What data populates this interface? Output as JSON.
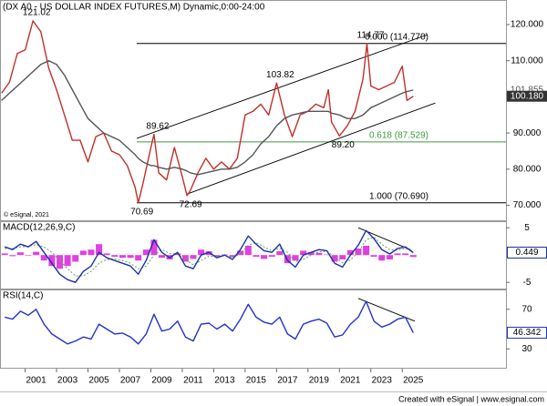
{
  "chart_data": [
    {
      "type": "line",
      "title": "(DX A0 - US DOLLAR INDEX FUTURES,M) Dynamic,0:00-24:00",
      "note": "© eSignal, 2021",
      "xlim": [
        1999.4,
        2031.6
      ],
      "ylim": [
        65.6,
        126.8
      ],
      "yticks": [
        {
          "value": 70,
          "label": "70.000"
        },
        {
          "value": 80,
          "label": "80.000"
        },
        {
          "value": 90,
          "label": "90.000"
        },
        {
          "value": 110,
          "label": "110.000"
        },
        {
          "value": 120,
          "label": "120.000"
        }
      ],
      "x": [
        1999.5,
        2000,
        2000.5,
        2001,
        2001.5,
        2002,
        2002.5,
        2003,
        2003.5,
        2004,
        2004.5,
        2005,
        2005.5,
        2006,
        2006.5,
        2007,
        2007.5,
        2008,
        2008.2,
        2008.5,
        2009,
        2009.2,
        2009.5,
        2010,
        2010.5,
        2011,
        2011.3,
        2011.5,
        2012,
        2012.5,
        2013,
        2013.5,
        2014,
        2014.5,
        2015,
        2015.5,
        2016,
        2016.5,
        2017,
        2017.5,
        2018,
        2018.5,
        2019,
        2019.5,
        2020,
        2020.3,
        2020.5,
        2021,
        2021.5,
        2022,
        2022.5,
        2022.75,
        2023,
        2023.5,
        2024,
        2024.5,
        2025,
        2025.3,
        2025.7
      ],
      "series": [
        {
          "color": "#c0302a",
          "value_box": "dark",
          "values": [
            101,
            104,
            112,
            113,
            121.02,
            118,
            108,
            102,
            95,
            88,
            88,
            82,
            89,
            90,
            85,
            84,
            81,
            75,
            70.69,
            76,
            86,
            89.62,
            79,
            77,
            86,
            78,
            72.69,
            74,
            79,
            83,
            80,
            82,
            80,
            83,
            95,
            96,
            98,
            95,
            103.82,
            95,
            89,
            95,
            96,
            98,
            97,
            102,
            93,
            89.2,
            92,
            96,
            105,
            114.77,
            103,
            102,
            103,
            104,
            108.5,
            99,
            100.18
          ],
          "value_labels": [
            null,
            null,
            null,
            null,
            "121.02",
            null,
            null,
            null,
            null,
            null,
            null,
            null,
            null,
            null,
            null,
            null,
            null,
            null,
            "70.69",
            null,
            null,
            "89.62",
            null,
            null,
            null,
            null,
            "72.69",
            null,
            null,
            null,
            null,
            null,
            null,
            null,
            null,
            null,
            null,
            null,
            "103.82",
            null,
            null,
            null,
            null,
            null,
            null,
            null,
            null,
            "89.20",
            null,
            null,
            null,
            "114.77",
            null,
            null,
            null,
            null,
            null,
            null,
            "100.180"
          ]
        },
        {
          "color": "#555555",
          "value_box": "text",
          "values": [
            99,
            101,
            103,
            105,
            107,
            109,
            110,
            109,
            106,
            102,
            98,
            94,
            92,
            90,
            89,
            88,
            86,
            84,
            83,
            82,
            81,
            81,
            80.5,
            80,
            80.5,
            80,
            79.5,
            79,
            78.5,
            79,
            79.5,
            80,
            80,
            80.5,
            82,
            84,
            87,
            89,
            92,
            94,
            95,
            95.5,
            96,
            96,
            96,
            96,
            95.5,
            95,
            94,
            94,
            95,
            96,
            97,
            98,
            99,
            100,
            101,
            101.5,
            101.855
          ],
          "value_labels": [
            null,
            null,
            null,
            null,
            null,
            null,
            null,
            null,
            null,
            null,
            null,
            null,
            null,
            null,
            null,
            null,
            null,
            null,
            null,
            null,
            null,
            null,
            null,
            null,
            null,
            null,
            null,
            null,
            null,
            null,
            null,
            null,
            null,
            null,
            null,
            null,
            null,
            null,
            null,
            null,
            null,
            null,
            null,
            null,
            null,
            null,
            null,
            null,
            null,
            null,
            null,
            null,
            null,
            null,
            null,
            null,
            null,
            null,
            "101.855"
          ]
        }
      ],
      "levels": [
        {
          "label": "0.000 (114.770)",
          "value": 114.77,
          "color": "#000000"
        },
        {
          "label": "0.618 (87.529)",
          "value": 87.529,
          "color": "#3c9a3c"
        },
        {
          "label": "1.000 (70.690)",
          "value": 70.69,
          "color": "#000000"
        }
      ],
      "trendlines": [
        {
          "points": [
            [
              2008.1,
              88.5
            ],
            [
              2026.6,
              117.2
            ]
          ],
          "color": "#000000"
        },
        {
          "points": [
            [
              2011.3,
              73.1
            ],
            [
              2027.1,
              98.3
            ]
          ],
          "color": "#000000"
        }
      ]
    },
    {
      "type": "line",
      "title": "MACD(12,26,9,C)",
      "xlim": [
        1999.4,
        2031.6
      ],
      "ylim": [
        -6.3,
        6.2
      ],
      "yticks": [
        -5,
        5
      ],
      "x": [
        1999.7,
        2000.2,
        2000.7,
        2001.2,
        2001.7,
        2002.2,
        2002.7,
        2003.2,
        2003.7,
        2004.2,
        2004.7,
        2005.2,
        2005.7,
        2006.2,
        2006.7,
        2007.2,
        2007.7,
        2008.2,
        2008.7,
        2009.2,
        2009.7,
        2010.2,
        2010.7,
        2011.2,
        2011.7,
        2012.2,
        2012.7,
        2013.2,
        2013.7,
        2014.2,
        2014.7,
        2015.2,
        2015.7,
        2016.2,
        2016.7,
        2017.2,
        2017.7,
        2018.2,
        2018.7,
        2019.2,
        2019.7,
        2020.2,
        2020.7,
        2021.2,
        2021.7,
        2022.2,
        2022.7,
        2023.2,
        2023.7,
        2024.2,
        2024.7,
        2025.2,
        2025.7
      ],
      "series": [
        {
          "color": "#e040e0",
          "style": "bar",
          "values": [
            0.3,
            -0.2,
            0.5,
            -0.1,
            0.6,
            -1.0,
            -2.0,
            -2.5,
            -2.0,
            -1.2,
            0.8,
            1.0,
            2.0,
            0.3,
            -0.3,
            -0.5,
            -0.5,
            -1.0,
            1.0,
            2.8,
            -0.5,
            -0.8,
            0.3,
            -1.2,
            -0.7,
            1.0,
            0.7,
            -0.3,
            0.1,
            -0.4,
            0.8,
            1.7,
            -0.3,
            -0.7,
            -0.3,
            0.7,
            -1.5,
            -1.0,
            0.8,
            0.5,
            0.4,
            0.1,
            -1.2,
            -0.8,
            0.9,
            1.2,
            1.7,
            -0.3,
            -1.0,
            -0.8,
            0.3,
            0.3,
            -0.351
          ]
        },
        {
          "color": "#5aa05a",
          "style": "dash",
          "values": [
            1.2,
            1.2,
            1.5,
            1.6,
            1.9,
            1.5,
            0.5,
            -1.0,
            -2.5,
            -3.8,
            -3.8,
            -3.0,
            -1.5,
            -0.8,
            -0.7,
            -1.0,
            -1.5,
            -2.5,
            -2.0,
            0.0,
            1.0,
            0.3,
            0.2,
            -0.8,
            -1.8,
            -1.0,
            -0.2,
            -0.2,
            -0.1,
            -0.4,
            0.2,
            1.8,
            2.3,
            1.5,
            0.8,
            1.3,
            0.5,
            -1.2,
            -0.8,
            0.0,
            0.6,
            0.7,
            -0.3,
            -1.4,
            -0.9,
            0.6,
            2.8,
            3.3,
            2.0,
            1.0,
            0.9,
            1.2,
            0.8
          ]
        },
        {
          "color": "#1a2fa8",
          "value_box": "outline",
          "values": [
            1.5,
            1.0,
            2.0,
            1.5,
            2.5,
            0.5,
            -1.5,
            -3.5,
            -4.5,
            -5.0,
            -3.0,
            -2.0,
            0.5,
            -0.5,
            -1.0,
            -1.5,
            -2.0,
            -3.5,
            -1.0,
            2.8,
            0.5,
            -0.5,
            0.5,
            -2.0,
            -2.5,
            0.0,
            0.5,
            -0.5,
            0.0,
            -0.8,
            1.0,
            3.5,
            2.0,
            0.8,
            0.5,
            2.0,
            -1.0,
            -2.2,
            0.0,
            0.5,
            1.0,
            0.8,
            -1.5,
            -2.2,
            0.0,
            1.8,
            4.5,
            3.0,
            1.0,
            0.2,
            1.2,
            1.5,
            0.449
          ]
        }
      ],
      "trendlines": [
        {
          "points": [
            [
              2022.2,
              5.0
            ],
            [
              2025.5,
              1.0
            ]
          ],
          "color": "#000000"
        }
      ]
    },
    {
      "type": "line",
      "title": "RSI(14,C)",
      "xlim": [
        1999.4,
        2031.6
      ],
      "ylim": [
        10,
        90
      ],
      "yticks": [
        30,
        70
      ],
      "xticks": [
        2001,
        2003,
        2005,
        2007,
        2009,
        2011,
        2013,
        2015,
        2017,
        2019,
        2021,
        2023,
        2025
      ],
      "x": [
        1999.7,
        2000.2,
        2000.7,
        2001.2,
        2001.7,
        2002.2,
        2002.7,
        2003.2,
        2003.7,
        2004.2,
        2004.7,
        2005.2,
        2005.7,
        2006.2,
        2006.7,
        2007.2,
        2007.7,
        2008.2,
        2008.7,
        2009.2,
        2009.7,
        2010.2,
        2010.7,
        2011.2,
        2011.7,
        2012.2,
        2012.7,
        2013.2,
        2013.7,
        2014.2,
        2014.7,
        2015.2,
        2015.7,
        2016.2,
        2016.7,
        2017.2,
        2017.7,
        2018.2,
        2018.7,
        2019.2,
        2019.7,
        2020.2,
        2020.7,
        2021.2,
        2021.7,
        2022.2,
        2022.7,
        2023.2,
        2023.7,
        2024.2,
        2024.7,
        2025.2,
        2025.7
      ],
      "series": [
        {
          "color": "#2233cc",
          "value_box": "outline",
          "values": [
            62,
            60,
            68,
            64,
            70,
            55,
            45,
            40,
            35,
            38,
            42,
            40,
            55,
            50,
            45,
            46,
            42,
            35,
            45,
            65,
            48,
            50,
            58,
            42,
            38,
            55,
            56,
            50,
            55,
            48,
            60,
            75,
            62,
            57,
            55,
            62,
            45,
            40,
            55,
            58,
            60,
            56,
            42,
            44,
            55,
            62,
            78,
            58,
            52,
            55,
            60,
            62,
            46.342
          ]
        }
      ],
      "trendlines": [
        {
          "points": [
            [
              2022.2,
              81.0
            ],
            [
              2025.8,
              58.0
            ]
          ],
          "color": "#000000"
        }
      ]
    }
  ],
  "footer": "Created with eSignal | www.esignal.com"
}
